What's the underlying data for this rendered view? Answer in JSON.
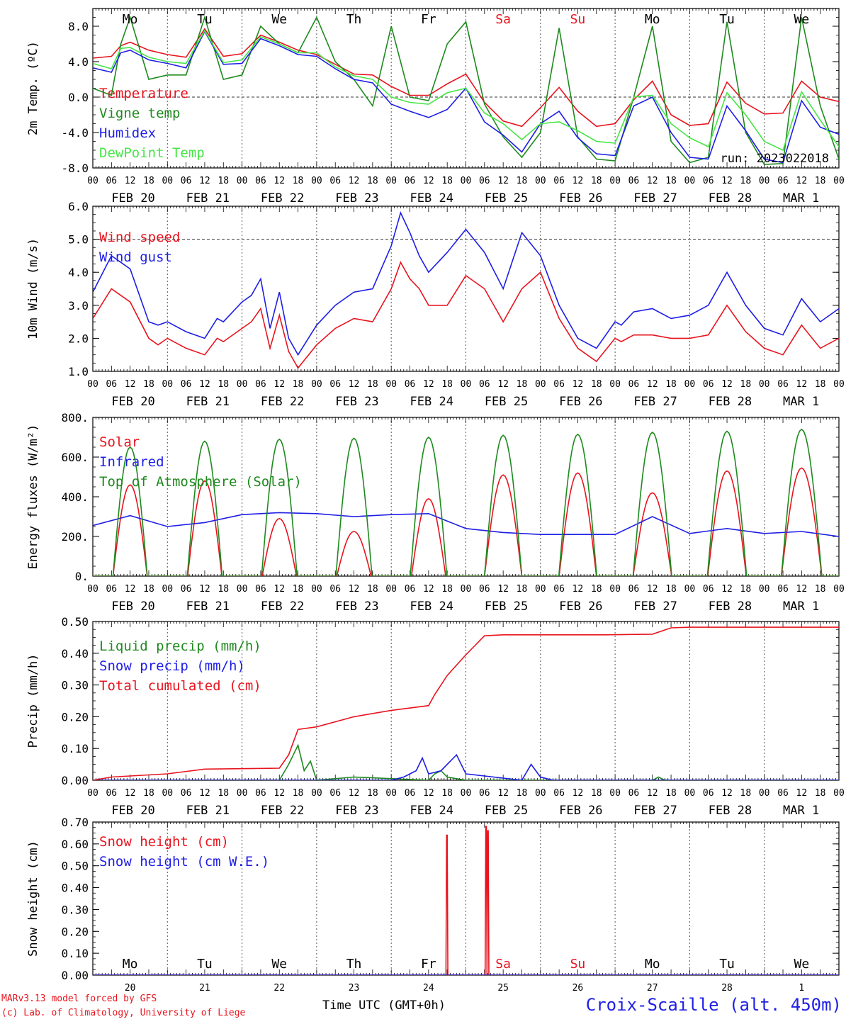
{
  "footer": {
    "model": "MARv3.13 model forced by GFS",
    "credit": "(c) Lab. of Climatology, University of Liege",
    "xlabel": "Time UTC (GMT+0h)",
    "location": "Croix-Scaille (alt. 450m)"
  },
  "colors": {
    "red": "#e8141e",
    "green": "#1e8a1e",
    "blue": "#1e1ee6",
    "lightgreen": "#46e646",
    "red_day": "#e8141e"
  },
  "time_axis": {
    "days": 10,
    "hour_ticks": [
      "00",
      "06",
      "12",
      "18"
    ],
    "end_tick": "00",
    "date_labels": [
      "FEB 20",
      "FEB 21",
      "FEB 22",
      "FEB 23",
      "FEB 24",
      "FEB 25",
      "FEB 26",
      "FEB 27",
      "FEB 28",
      "MAR  1"
    ],
    "weekday_labels": [
      "Mo",
      "Tu",
      "We",
      "Th",
      "Fr",
      "Sa",
      "Su",
      "Mo",
      "Tu",
      "We"
    ],
    "weekday_red": [
      false,
      false,
      false,
      false,
      false,
      true,
      true,
      false,
      false,
      false
    ],
    "day_numbers": [
      "20",
      "21",
      "22",
      "23",
      "24",
      "25",
      "26",
      "27",
      "28",
      "1"
    ]
  },
  "chart_data": [
    {
      "type": "line",
      "ylabel": "2m Temp. (ºC)",
      "ylim": [
        -8,
        10
      ],
      "yticks": [
        "-8.0",
        "-4.0",
        "0.0",
        "4.0",
        "8.0"
      ],
      "ytick_values": [
        -8,
        -4,
        0,
        4,
        8
      ],
      "dashed_y": 0,
      "annotation": "run: 2023022018",
      "x_unit": "hours since FEB 20 00 UTC",
      "series": [
        {
          "name": "Temperature",
          "color": "red",
          "x": [
            0,
            6,
            9,
            12,
            18,
            24,
            30,
            36,
            42,
            48,
            54,
            60,
            66,
            72,
            78,
            84,
            90,
            96,
            102,
            108,
            114,
            120,
            126,
            132,
            138,
            144,
            150,
            156,
            162,
            168,
            174,
            180,
            186,
            192,
            198,
            204,
            210,
            216,
            222,
            228,
            234,
            240
          ],
          "y": [
            4.4,
            4.6,
            5.8,
            6.2,
            5.3,
            4.8,
            4.5,
            7.7,
            4.6,
            4.9,
            7.0,
            6.2,
            5.3,
            4.8,
            3.7,
            2.6,
            2.5,
            1.2,
            0.2,
            0.2,
            1.5,
            2.6,
            -0.6,
            -2.7,
            -3.3,
            -1.2,
            1.1,
            -1.6,
            -3.3,
            -3.0,
            -0.3,
            1.8,
            -2.0,
            -3.2,
            -3.0,
            1.7,
            -0.7,
            -1.9,
            -1.8,
            1.8,
            0,
            -0.5
          ]
        },
        {
          "name": "Vigne temp",
          "color": "green",
          "x": [
            0,
            6,
            9,
            12,
            18,
            24,
            30,
            36,
            42,
            48,
            54,
            60,
            66,
            72,
            78,
            84,
            90,
            96,
            102,
            108,
            114,
            120,
            126,
            132,
            138,
            144,
            150,
            156,
            162,
            168,
            174,
            180,
            186,
            192,
            198,
            204,
            210,
            216,
            222,
            228,
            234,
            240
          ],
          "y": [
            1.0,
            0.2,
            6.0,
            9.0,
            2.0,
            2.5,
            2.5,
            9.0,
            2.0,
            2.5,
            8.0,
            6.0,
            5.0,
            9.0,
            4.0,
            2.0,
            -1.0,
            8.0,
            0,
            -0.4,
            6.0,
            8.5,
            -0.8,
            -4.5,
            -6.8,
            -4.0,
            7.8,
            -4.5,
            -7.0,
            -7.2,
            0,
            8.0,
            -5.0,
            -7.4,
            -6.8,
            8.5,
            -4.0,
            -7.6,
            -7.5,
            9.0,
            -1.0,
            -7.0
          ]
        },
        {
          "name": "Humidex",
          "color": "blue",
          "x": [
            0,
            6,
            9,
            12,
            18,
            24,
            30,
            36,
            42,
            48,
            54,
            60,
            66,
            72,
            78,
            84,
            90,
            96,
            102,
            108,
            114,
            120,
            126,
            132,
            138,
            144,
            150,
            156,
            162,
            168,
            174,
            180,
            186,
            192,
            198,
            204,
            210,
            216,
            222,
            228,
            234,
            240
          ],
          "y": [
            3.3,
            2.8,
            5.0,
            5.3,
            4.2,
            3.8,
            3.3,
            7.4,
            3.7,
            3.8,
            6.6,
            5.8,
            4.8,
            4.6,
            3.2,
            2.0,
            1.6,
            -0.8,
            -1.6,
            -2.3,
            -1.4,
            1.0,
            -2.8,
            -4.3,
            -6.2,
            -3.0,
            -1.6,
            -4.6,
            -6.4,
            -6.6,
            -1.0,
            0,
            -4.0,
            -6.8,
            -7.0,
            -1.0,
            -3.8,
            -7.0,
            -7.4,
            -0.4,
            -3.4,
            -4.2
          ]
        },
        {
          "name": "DewPoint Temp",
          "color": "lightgreen",
          "x": [
            0,
            6,
            9,
            12,
            18,
            24,
            30,
            36,
            42,
            48,
            54,
            60,
            66,
            72,
            78,
            84,
            90,
            96,
            102,
            108,
            114,
            120,
            126,
            132,
            138,
            144,
            150,
            156,
            162,
            168,
            174,
            180,
            186,
            192,
            198,
            204,
            210,
            216,
            222,
            228,
            234,
            240
          ],
          "y": [
            3.8,
            3.2,
            5.5,
            5.6,
            4.5,
            4.0,
            3.8,
            7.5,
            3.9,
            4.2,
            6.8,
            6.0,
            5.0,
            5.0,
            3.4,
            2.4,
            2.0,
            0,
            -0.6,
            -0.8,
            0.5,
            1.0,
            -1.8,
            -3.0,
            -4.8,
            -3.0,
            -2.8,
            -3.8,
            -5.0,
            -5.2,
            0,
            0.2,
            -3.0,
            -4.6,
            -5.6,
            0.5,
            -2.0,
            -5.0,
            -6.0,
            0.6,
            -2.6,
            -5.6
          ]
        }
      ]
    },
    {
      "type": "line",
      "ylabel": "10m Wind (m/s)",
      "ylim": [
        1,
        6
      ],
      "yticks": [
        "1.0",
        "2.0",
        "3.0",
        "4.0",
        "5.0",
        "6.0"
      ],
      "ytick_values": [
        1,
        2,
        3,
        4,
        5,
        6
      ],
      "dashed_y": 5,
      "x_unit": "hours since FEB 20 00 UTC",
      "series": [
        {
          "name": "Wind speed",
          "color": "red",
          "x": [
            0,
            6,
            9,
            12,
            18,
            21,
            24,
            30,
            36,
            40,
            42,
            48,
            51,
            54,
            57,
            60,
            63,
            66,
            72,
            78,
            84,
            90,
            96,
            99,
            102,
            105,
            108,
            114,
            120,
            126,
            132,
            138,
            144,
            150,
            156,
            162,
            168,
            170,
            174,
            180,
            186,
            192,
            198,
            204,
            210,
            216,
            222,
            228,
            234,
            240
          ],
          "y": [
            2.6,
            3.5,
            3.3,
            3.1,
            2.0,
            1.8,
            2.0,
            1.7,
            1.5,
            2.0,
            1.9,
            2.3,
            2.5,
            2.9,
            1.7,
            2.7,
            1.6,
            1.1,
            1.8,
            2.3,
            2.6,
            2.5,
            3.5,
            4.3,
            3.8,
            3.5,
            3.0,
            3.0,
            3.9,
            3.5,
            2.5,
            3.5,
            4.0,
            2.6,
            1.7,
            1.3,
            2.0,
            1.9,
            2.1,
            2.1,
            2.0,
            2.0,
            2.1,
            3.0,
            2.2,
            1.7,
            1.5,
            2.4,
            1.7,
            2.0
          ]
        },
        {
          "name": "Wind gust",
          "color": "blue",
          "x": [
            0,
            6,
            9,
            12,
            18,
            21,
            24,
            30,
            36,
            40,
            42,
            48,
            51,
            54,
            57,
            60,
            63,
            66,
            72,
            78,
            84,
            90,
            96,
            99,
            102,
            105,
            108,
            114,
            120,
            126,
            132,
            138,
            144,
            150,
            156,
            162,
            168,
            170,
            174,
            180,
            186,
            192,
            198,
            204,
            210,
            216,
            222,
            228,
            234,
            240
          ],
          "y": [
            3.4,
            4.5,
            4.3,
            4.1,
            2.5,
            2.4,
            2.5,
            2.2,
            2.0,
            2.6,
            2.5,
            3.1,
            3.3,
            3.8,
            2.3,
            3.4,
            2.0,
            1.5,
            2.4,
            3.0,
            3.4,
            3.5,
            4.8,
            5.8,
            5.2,
            4.5,
            4.0,
            4.6,
            5.3,
            4.6,
            3.5,
            5.2,
            4.5,
            3.0,
            2.0,
            1.7,
            2.5,
            2.4,
            2.8,
            2.9,
            2.6,
            2.7,
            3.0,
            4.0,
            3.0,
            2.3,
            2.1,
            3.2,
            2.5,
            2.9
          ]
        }
      ]
    },
    {
      "type": "line",
      "ylabel": "Energy fluxes (W/m²)",
      "ylim": [
        0,
        800
      ],
      "yticks": [
        "0.",
        "200.",
        "400.",
        "600.",
        "800."
      ],
      "ytick_values": [
        0,
        200,
        400,
        600,
        800
      ],
      "daily_peak_hour": 12,
      "series": [
        {
          "name": "Solar",
          "color": "red",
          "daily_peaks": [
            460,
            480,
            290,
            225,
            390,
            510,
            520,
            420,
            530,
            545
          ],
          "daily_half_width_h": [
            5.5,
            5.5,
            5.5,
            5.5,
            5.5,
            6.0,
            6.0,
            6.2,
            6.2,
            6.5
          ]
        },
        {
          "name": "Infrared",
          "color": "blue",
          "x_unit": "hours since FEB 20 00 UTC",
          "x": [
            0,
            12,
            24,
            36,
            48,
            60,
            72,
            84,
            96,
            108,
            120,
            132,
            144,
            156,
            168,
            180,
            192,
            204,
            216,
            228,
            240
          ],
          "y": [
            255,
            305,
            250,
            270,
            310,
            320,
            315,
            300,
            310,
            315,
            240,
            220,
            210,
            210,
            210,
            300,
            215,
            240,
            215,
            225,
            200
          ]
        },
        {
          "name": "Top of Atmosphere (Solar)",
          "color": "green",
          "daily_peaks": [
            650,
            680,
            690,
            695,
            700,
            710,
            715,
            725,
            730,
            740
          ],
          "daily_half_width_h": [
            5.5,
            5.6,
            5.7,
            5.8,
            5.9,
            6.0,
            6.1,
            6.2,
            6.3,
            6.5
          ]
        }
      ]
    },
    {
      "type": "line",
      "ylabel": "Precip (mm/h)",
      "ylim": [
        0,
        0.5
      ],
      "yticks": [
        "0.00",
        "0.10",
        "0.20",
        "0.30",
        "0.40",
        "0.50"
      ],
      "ytick_values": [
        0,
        0.1,
        0.2,
        0.3,
        0.4,
        0.5
      ],
      "x_unit": "hours since FEB 20 00 UTC",
      "series": [
        {
          "name": "Liquid precip (mm/h)",
          "color": "green",
          "x": [
            0,
            60,
            63,
            66,
            68,
            70,
            72,
            84,
            108,
            110,
            112,
            114,
            120,
            180,
            182,
            184,
            240
          ],
          "y": [
            0,
            0,
            0.05,
            0.11,
            0.03,
            0.06,
            0,
            0.01,
            0,
            0.02,
            0.03,
            0.01,
            0,
            0,
            0.01,
            0,
            0
          ]
        },
        {
          "name": "Snow precip (mm/h)",
          "color": "blue",
          "x": [
            0,
            96,
            100,
            104,
            106,
            108,
            112,
            117,
            120,
            138,
            141,
            144,
            148,
            180,
            240
          ],
          "y": [
            0,
            0,
            0.01,
            0.03,
            0.07,
            0.02,
            0.03,
            0.08,
            0.02,
            0,
            0.05,
            0.01,
            0,
            0,
            0
          ]
        },
        {
          "name": "Total cumulated (cm)",
          "color": "red",
          "x": [
            0,
            6,
            24,
            36,
            60,
            63,
            66,
            72,
            84,
            96,
            108,
            110,
            114,
            120,
            126,
            132,
            165,
            180,
            186,
            192,
            216,
            240
          ],
          "y": [
            0,
            0.01,
            0.02,
            0.035,
            0.038,
            0.08,
            0.16,
            0.168,
            0.2,
            0.22,
            0.235,
            0.27,
            0.33,
            0.395,
            0.455,
            0.458,
            0.458,
            0.46,
            0.48,
            0.482,
            0.482,
            0.482
          ]
        }
      ]
    },
    {
      "type": "line",
      "ylabel": "Snow height (cm)",
      "ylim": [
        0,
        0.7
      ],
      "yticks": [
        "0.00",
        "0.10",
        "0.20",
        "0.30",
        "0.40",
        "0.50",
        "0.60",
        "0.70"
      ],
      "ytick_values": [
        0,
        0.1,
        0.2,
        0.3,
        0.4,
        0.5,
        0.6,
        0.7
      ],
      "x_unit": "hours since FEB 20 00 UTC",
      "series": [
        {
          "name": "Snow height (cm)",
          "color": "red",
          "x": [
            0,
            113.6,
            113.8,
            114.0,
            114.2,
            126.2,
            126.4,
            126.6,
            126.8,
            127.0,
            127.2,
            127.4,
            127.6,
            240
          ],
          "y": [
            0,
            0,
            0.64,
            0.64,
            0,
            0,
            0.68,
            0.68,
            0,
            0.66,
            0.66,
            0,
            0,
            0
          ]
        },
        {
          "name": "Snow height (cm W.E.)",
          "color": "blue",
          "x": [
            0,
            240
          ],
          "y": [
            0,
            0
          ]
        }
      ]
    }
  ]
}
